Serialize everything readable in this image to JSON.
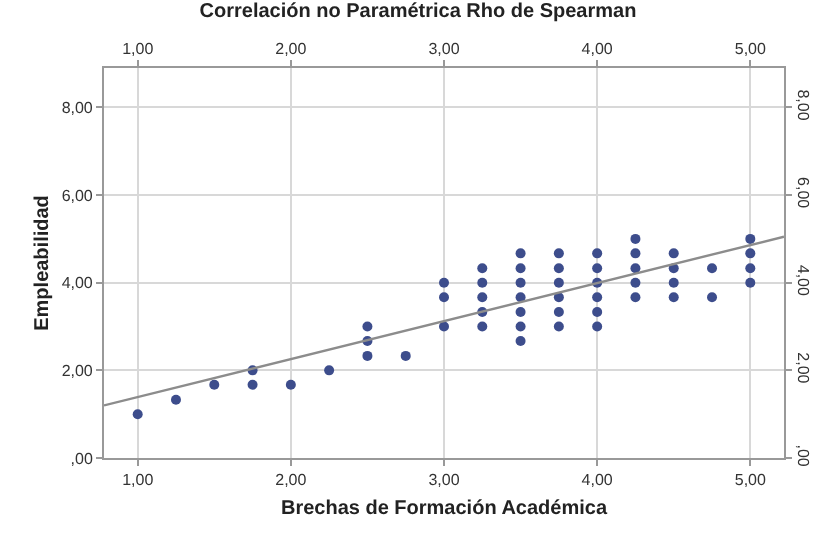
{
  "chart_data": {
    "type": "scatter",
    "title": "Correlación no Paramétrica Rho de Spearman",
    "xlabel": "Brechas de Formación Académica",
    "ylabel": "Empleabilidad",
    "xlim": [
      0.78,
      5.22
    ],
    "ylim": [
      0,
      8.9
    ],
    "x2lim": [
      0.78,
      5.22
    ],
    "y2lim": [
      0,
      8.9
    ],
    "xticks": [
      {
        "value": 1,
        "label": "1,00"
      },
      {
        "value": 2,
        "label": "2,00"
      },
      {
        "value": 3,
        "label": "3,00"
      },
      {
        "value": 4,
        "label": "4,00"
      },
      {
        "value": 5,
        "label": "5,00"
      }
    ],
    "x2ticks": [
      {
        "value": 1,
        "label": "1,00"
      },
      {
        "value": 2,
        "label": "2,00"
      },
      {
        "value": 3,
        "label": "3,00"
      },
      {
        "value": 4,
        "label": "4,00"
      },
      {
        "value": 5,
        "label": "5,00"
      }
    ],
    "yticks": [
      {
        "value": 0,
        "label": ",00"
      },
      {
        "value": 2,
        "label": "2,00"
      },
      {
        "value": 4,
        "label": "4,00"
      },
      {
        "value": 6,
        "label": "6,00"
      },
      {
        "value": 8,
        "label": "8,00"
      }
    ],
    "y2ticks": [
      {
        "value": 0,
        "label": ",00"
      },
      {
        "value": 2,
        "label": "2,00"
      },
      {
        "value": 4,
        "label": "4,00"
      },
      {
        "value": 6,
        "label": "6,00"
      },
      {
        "value": 8,
        "label": "8,00"
      }
    ],
    "grid": true,
    "series": [
      {
        "marker": "circle",
        "color": "#3d4d8c",
        "x": [
          1,
          1.25,
          1.5,
          1.75,
          1.75,
          2,
          2.25,
          2.5,
          2.5,
          2.5,
          2.75,
          3,
          3,
          3,
          3.25,
          3.25,
          3.25,
          3.25,
          3.25,
          3.5,
          3.5,
          3.5,
          3.5,
          3.5,
          3.5,
          3.5,
          3.75,
          3.75,
          3.75,
          3.75,
          3.75,
          3.75,
          4,
          4,
          4,
          4,
          4,
          4,
          4.25,
          4.25,
          4.25,
          4.25,
          4.25,
          4.5,
          4.5,
          4.5,
          4.5,
          4.75,
          4.75,
          5,
          5,
          5,
          5
        ],
        "values": [
          1,
          1.33,
          1.67,
          2,
          1.67,
          1.67,
          2,
          3,
          2.67,
          2.33,
          2.33,
          4,
          3.67,
          3,
          4.33,
          4,
          3.67,
          3.33,
          3,
          4.67,
          4.33,
          4,
          3.67,
          3.33,
          3,
          2.67,
          4.67,
          4.33,
          4,
          3.67,
          3.33,
          3,
          4.67,
          4.33,
          4,
          3.67,
          3.33,
          3,
          5,
          4.67,
          4.33,
          4,
          3.67,
          4.67,
          4.33,
          4,
          3.67,
          4.33,
          3.67,
          5,
          4.67,
          4.33,
          4
        ]
      },
      {
        "type": "line",
        "marker": "none",
        "color": "#8c8c8c",
        "x": [
          0.78,
          5.22
        ],
        "values": [
          1.2,
          5.05
        ]
      }
    ]
  }
}
